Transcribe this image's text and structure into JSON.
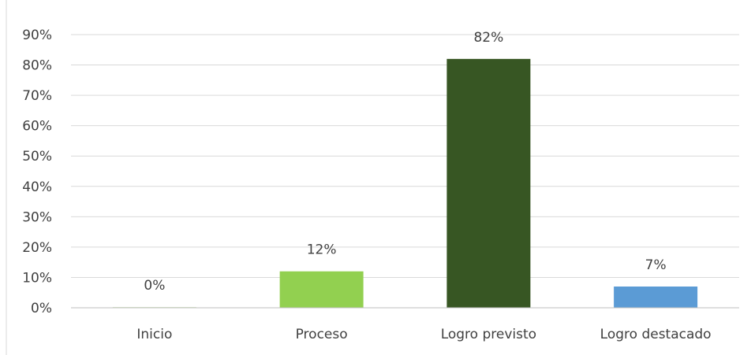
{
  "chart_data": {
    "type": "bar",
    "title": "",
    "xlabel": "",
    "ylabel": "",
    "categories": [
      "Inicio",
      "Proceso",
      "Logro previsto",
      "Logro destacado"
    ],
    "values": [
      0,
      12,
      82,
      7
    ],
    "data_labels": [
      "0%",
      "12%",
      "82%",
      "7%"
    ],
    "bar_colors": [
      "#d9e8c4",
      "#92d050",
      "#375623",
      "#5b9bd5"
    ],
    "ylim": [
      0,
      90
    ],
    "yticks": [
      0,
      10,
      20,
      30,
      40,
      50,
      60,
      70,
      80,
      90
    ],
    "ytick_labels": [
      "0%",
      "10%",
      "20%",
      "30%",
      "40%",
      "50%",
      "60%",
      "70%",
      "80%",
      "90%"
    ],
    "grid": true,
    "legend": "none"
  }
}
